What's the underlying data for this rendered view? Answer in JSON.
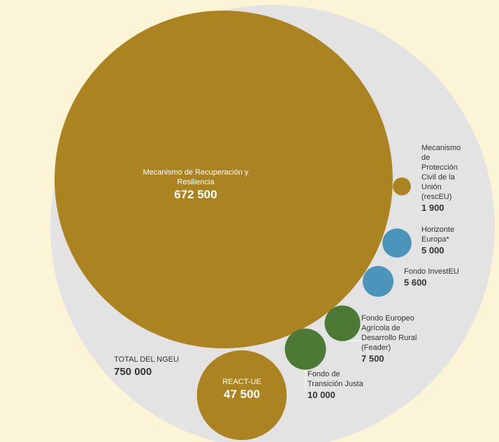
{
  "chart_data": {
    "type": "packed-bubble",
    "total_name": "TOTAL DEL NGEU",
    "total_value": 750000,
    "total_value_label": "750 000",
    "categories": [
      "Mecanismo de Recuperación y Resiliencia",
      "REACT-UE",
      "Fondo de Transición Justa",
      "Fondo Europeo Agrícola de Desarrollo Rural (Feader)",
      "Fondo InvestEU",
      "Horizonte Europa*",
      "Mecanismo de Protección Civil de la Unión (rescEU)"
    ],
    "values": [
      672500,
      47500,
      10000,
      7500,
      5600,
      5000,
      1900
    ],
    "value_labels": [
      "672 500",
      "47 500",
      "10 000",
      "7 500",
      "5 600",
      "5 000",
      "1 900"
    ],
    "colors": [
      "#ab8421",
      "#ab8421",
      "#4c7a35",
      "#4c7a35",
      "#4a95b9",
      "#4a95b9",
      "#ab8421"
    ]
  }
}
